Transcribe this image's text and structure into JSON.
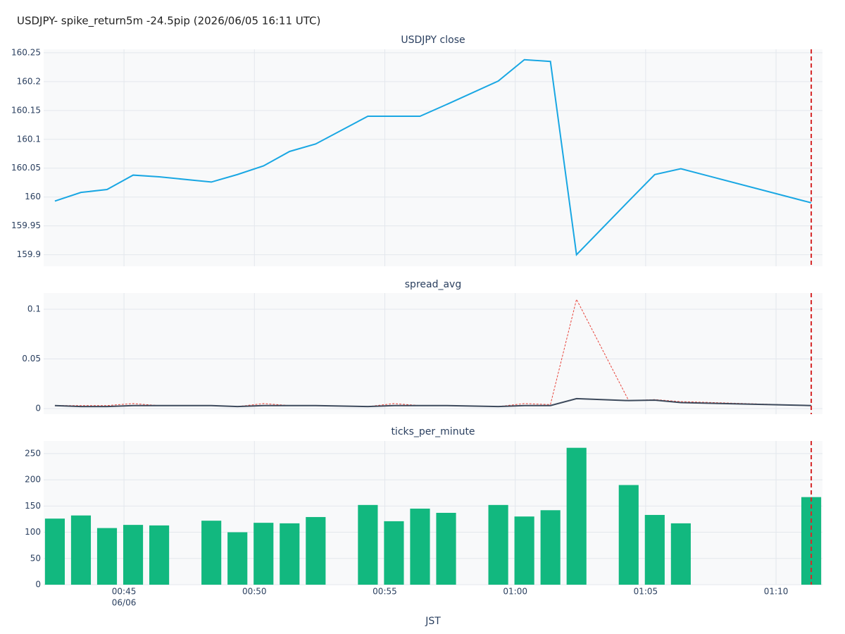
{
  "title": "USDJPY- spike_return5m -24.5pip (2026/06/05 16:11 UTC)",
  "chart_data": [
    {
      "type": "line",
      "title": "USDJPY close",
      "x": [
        42.35,
        43.35,
        44.35,
        45.35,
        46.35,
        48.35,
        49.35,
        50.35,
        51.35,
        52.35,
        54.35,
        55.35,
        56.35,
        57.35,
        59.35,
        60.35,
        61.35,
        62.35,
        64.35,
        65.35,
        66.35,
        71.35
      ],
      "series": [
        {
          "color": "#19a7e3",
          "values": [
            159.993,
            160.008,
            160.013,
            160.038,
            160.035,
            160.026,
            160.039,
            160.054,
            160.079,
            160.092,
            160.14,
            160.14,
            160.14,
            160.16,
            160.201,
            160.238,
            160.235,
            159.9,
            159.993,
            160.039,
            160.049,
            159.99
          ]
        }
      ],
      "xlim": [
        41.92,
        71.78
      ],
      "ylim": [
        159.88,
        160.256
      ],
      "yticks": [
        159.9,
        159.95,
        160,
        160.05,
        160.1,
        160.15,
        160.2,
        160.25
      ],
      "grid": true,
      "event_x": 71.35
    },
    {
      "type": "line",
      "title": "spread_avg",
      "x": [
        42.35,
        43.35,
        44.35,
        45.35,
        46.35,
        48.35,
        49.35,
        50.35,
        51.35,
        52.35,
        54.35,
        55.35,
        56.35,
        57.35,
        59.35,
        60.35,
        61.35,
        62.35,
        64.35,
        65.35,
        66.35,
        71.35
      ],
      "series": [
        {
          "color": "#e8453c",
          "line_style": "dot",
          "values": [
            0.003,
            0.003,
            0.003,
            0.005,
            0.003,
            0.003,
            0.002,
            0.005,
            0.003,
            0.003,
            0.002,
            0.005,
            0.003,
            0.003,
            0.002,
            0.005,
            0.004,
            0.11,
            0.008,
            0.009,
            0.007,
            0.003
          ]
        },
        {
          "color": "#3d4a5c",
          "values": [
            0.003,
            0.002,
            0.002,
            0.003,
            0.003,
            0.003,
            0.002,
            0.003,
            0.003,
            0.003,
            0.002,
            0.003,
            0.003,
            0.003,
            0.002,
            0.003,
            0.003,
            0.01,
            0.008,
            0.0085,
            0.006,
            0.003
          ]
        }
      ],
      "xlim": [
        41.92,
        71.78
      ],
      "ylim": [
        -0.0057,
        0.1163
      ],
      "yticks": [
        0,
        0.05,
        0.1
      ],
      "grid": true,
      "event_x": 71.35
    },
    {
      "type": "bar",
      "title": "ticks_per_minute",
      "x": [
        42.35,
        43.35,
        44.35,
        45.35,
        46.35,
        48.35,
        49.35,
        50.35,
        51.35,
        52.35,
        54.35,
        55.35,
        56.35,
        57.35,
        59.35,
        60.35,
        61.35,
        62.35,
        64.35,
        65.35,
        66.35,
        71.35
      ],
      "values": [
        126,
        132,
        108,
        114,
        113,
        122,
        100,
        118,
        117,
        129,
        152,
        121,
        145,
        137,
        152,
        130,
        142,
        261,
        190,
        133,
        117,
        167
      ],
      "color": "#12b87f",
      "xlim": [
        41.92,
        71.78
      ],
      "ylim": [
        0,
        274
      ],
      "yticks": [
        0,
        50,
        100,
        150,
        200,
        250
      ],
      "xticks": [
        {
          "value": 45,
          "label": "00:45"
        },
        {
          "value": 50,
          "label": "00:50"
        },
        {
          "value": 55,
          "label": "00:55"
        },
        {
          "value": 60,
          "label": "01:00"
        },
        {
          "value": 65,
          "label": "01:05"
        },
        {
          "value": 70,
          "label": "01:10"
        }
      ],
      "x_date_label": "06/06",
      "xlabel": "JST",
      "grid": true,
      "event_x": 71.35
    }
  ]
}
